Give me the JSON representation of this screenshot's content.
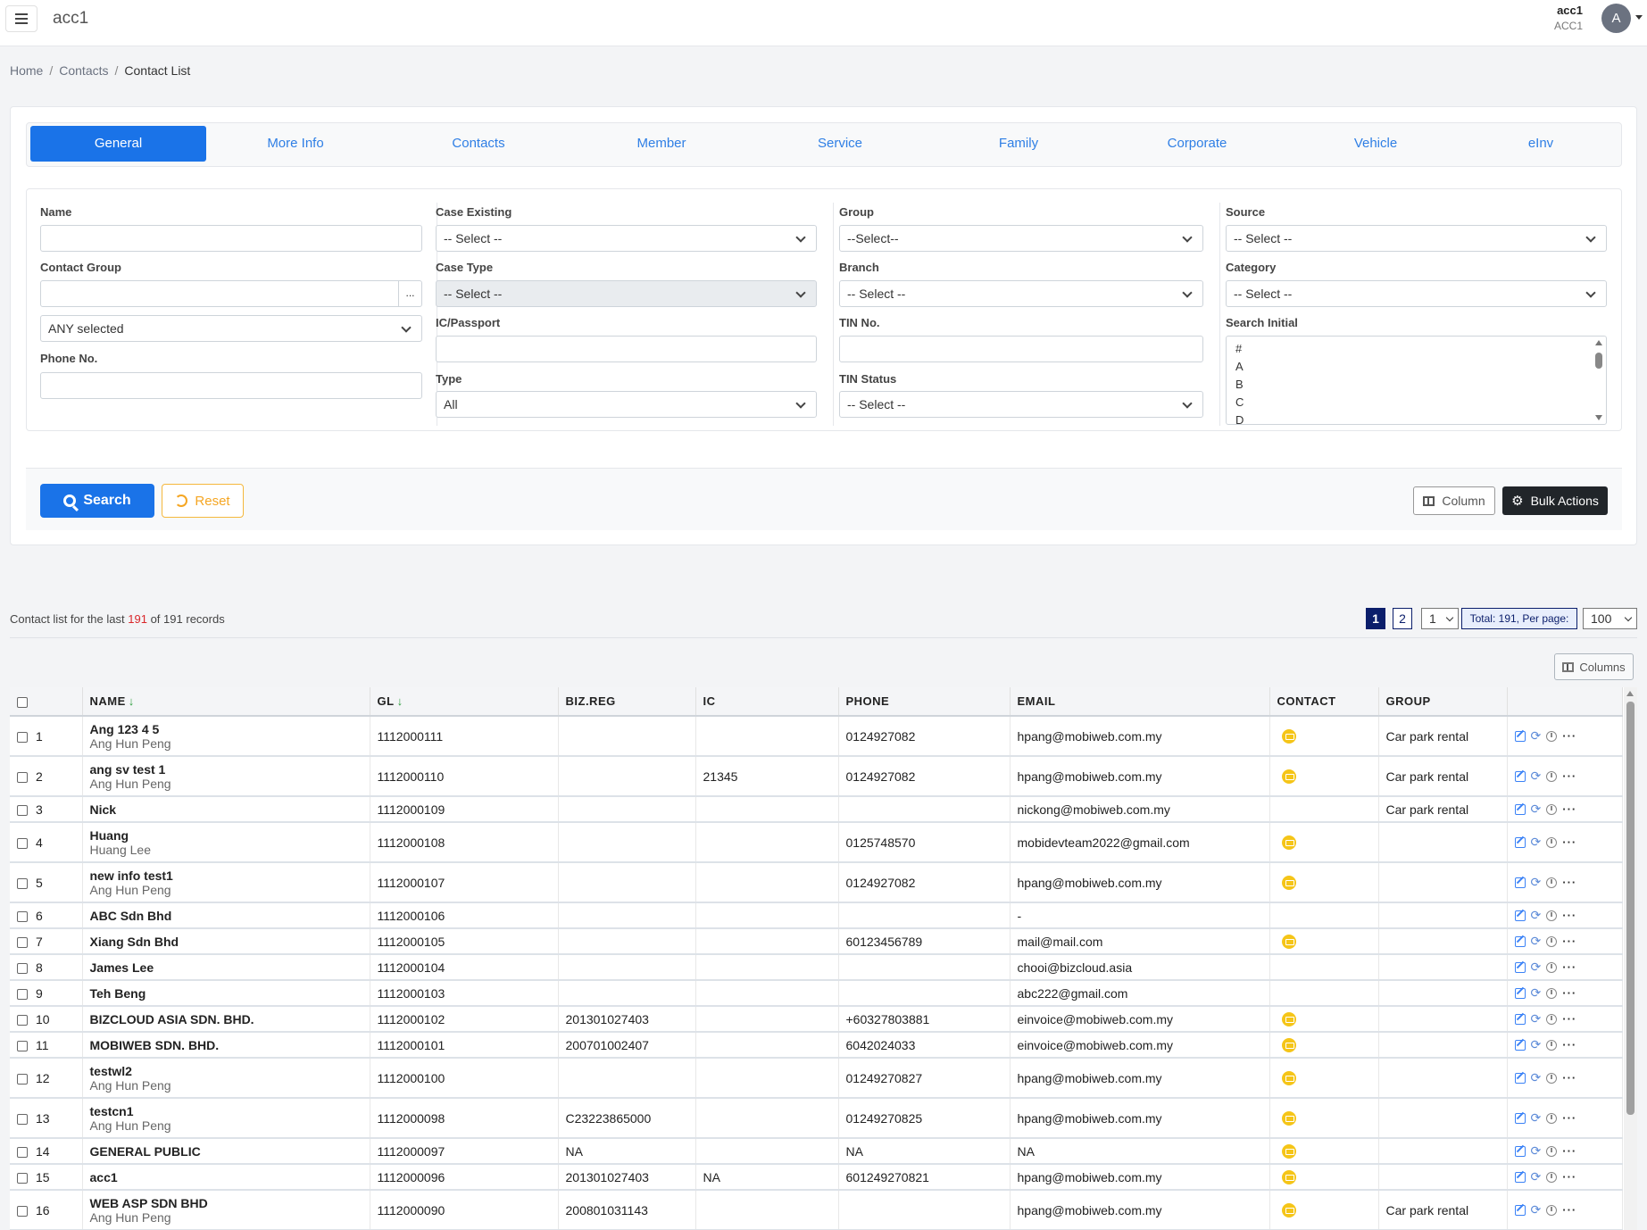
{
  "header": {
    "app_title": "acc1",
    "user_name": "acc1",
    "user_code": "ACC1",
    "avatar_letter": "A"
  },
  "breadcrumb": [
    "Home",
    "Contacts",
    "Contact List"
  ],
  "tabs": [
    "General",
    "More Info",
    "Contacts",
    "Member",
    "Service",
    "Family",
    "Corporate",
    "Vehicle",
    "eInv"
  ],
  "active_tab": "General",
  "form": {
    "name_label": "Name",
    "contact_group_label": "Contact Group",
    "contact_group_btn": "...",
    "any_selected": "ANY selected",
    "phone_label": "Phone No.",
    "case_existing_label": "Case Existing",
    "case_existing_value": "-- Select --",
    "case_type_label": "Case Type",
    "case_type_value": "-- Select --",
    "ic_label": "IC/Passport",
    "type_label": "Type",
    "type_value": "All",
    "group_label": "Group",
    "group_value": "--Select--",
    "branch_label": "Branch",
    "branch_value": "-- Select --",
    "tin_label": "TIN No.",
    "tin_status_label": "TIN Status",
    "tin_status_value": "-- Select --",
    "source_label": "Source",
    "source_value": "-- Select --",
    "category_label": "Category",
    "category_value": "-- Select --",
    "search_initial_label": "Search Initial",
    "search_initial_options": [
      "#",
      "A",
      "B",
      "C",
      "D"
    ]
  },
  "actions": {
    "search": "Search",
    "reset": "Reset",
    "column": "Column",
    "bulk": "Bulk Actions"
  },
  "summary": {
    "prefix": "Contact list for the last",
    "count": "191",
    "middle": "of",
    "total": "191",
    "suffix": "records"
  },
  "pagination": {
    "pages": [
      "1",
      "2"
    ],
    "current_page": "1",
    "page_select": "1",
    "total_text": "Total: 191, Per page:",
    "per_page": "100"
  },
  "table": {
    "columns_btn": "Columns",
    "headers": [
      "NAME",
      "GL",
      "BIZ.REG",
      "IC",
      "PHONE",
      "EMAIL",
      "CONTACT",
      "GROUP"
    ],
    "sort_arrow": "↓",
    "rows": [
      {
        "no": "1",
        "name": "Ang 123 4 5",
        "sub": "Ang Hun Peng",
        "gl": "1112000111",
        "biz": "",
        "ic": "",
        "phone": "0124927082",
        "email": "hpang@mobiweb.com.my",
        "contact": true,
        "group": "Car park rental"
      },
      {
        "no": "2",
        "name": "ang sv test 1",
        "sub": "Ang Hun Peng",
        "gl": "1112000110",
        "biz": "",
        "ic": "21345",
        "phone": "0124927082",
        "email": "hpang@mobiweb.com.my",
        "contact": true,
        "group": "Car park rental"
      },
      {
        "no": "3",
        "name": "Nick",
        "sub": "",
        "gl": "1112000109",
        "biz": "",
        "ic": "",
        "phone": "",
        "email": "nickong@mobiweb.com.my",
        "contact": false,
        "group": "Car park rental"
      },
      {
        "no": "4",
        "name": "Huang",
        "sub": "Huang Lee",
        "gl": "1112000108",
        "biz": "",
        "ic": "",
        "phone": "0125748570",
        "email": "mobidevteam2022@gmail.com",
        "contact": true,
        "group": ""
      },
      {
        "no": "5",
        "name": "new info test1",
        "sub": "Ang Hun Peng",
        "gl": "1112000107",
        "biz": "",
        "ic": "",
        "phone": "0124927082",
        "email": "hpang@mobiweb.com.my",
        "contact": true,
        "group": ""
      },
      {
        "no": "6",
        "name": "ABC Sdn Bhd",
        "sub": "",
        "gl": "1112000106",
        "biz": "",
        "ic": "",
        "phone": "",
        "email": "-",
        "contact": false,
        "group": ""
      },
      {
        "no": "7",
        "name": "Xiang Sdn Bhd",
        "sub": "",
        "gl": "1112000105",
        "biz": "",
        "ic": "",
        "phone": "60123456789",
        "email": "mail@mail.com",
        "contact": true,
        "group": ""
      },
      {
        "no": "8",
        "name": "James Lee",
        "sub": "",
        "gl": "1112000104",
        "biz": "",
        "ic": "",
        "phone": "",
        "email": "chooi@bizcloud.asia",
        "contact": false,
        "group": ""
      },
      {
        "no": "9",
        "name": "Teh Beng",
        "sub": "",
        "gl": "1112000103",
        "biz": "",
        "ic": "",
        "phone": "",
        "email": "abc222@gmail.com",
        "contact": false,
        "group": ""
      },
      {
        "no": "10",
        "name": "BIZCLOUD ASIA SDN. BHD.",
        "sub": "",
        "gl": "1112000102",
        "biz": "201301027403",
        "ic": "",
        "phone": "+60327803881",
        "email": "einvoice@mobiweb.com.my",
        "contact": true,
        "group": ""
      },
      {
        "no": "11",
        "name": "MOBIWEB SDN. BHD.",
        "sub": "",
        "gl": "1112000101",
        "biz": "200701002407",
        "ic": "",
        "phone": "6042024033",
        "email": "einvoice@mobiweb.com.my",
        "contact": true,
        "group": ""
      },
      {
        "no": "12",
        "name": "testwl2",
        "sub": "Ang Hun Peng",
        "gl": "1112000100",
        "biz": "",
        "ic": "",
        "phone": "01249270827",
        "email": "hpang@mobiweb.com.my",
        "contact": true,
        "group": ""
      },
      {
        "no": "13",
        "name": "testcn1",
        "sub": "Ang Hun Peng",
        "gl": "1112000098",
        "biz": "C23223865000",
        "ic": "",
        "phone": "01249270825",
        "email": "hpang@mobiweb.com.my",
        "contact": true,
        "group": ""
      },
      {
        "no": "14",
        "name": "GENERAL PUBLIC",
        "sub": "",
        "gl": "1112000097",
        "biz": "NA",
        "ic": "",
        "phone": "NA",
        "email": "NA",
        "contact": true,
        "group": ""
      },
      {
        "no": "15",
        "name": "acc1",
        "sub": "",
        "gl": "1112000096",
        "biz": "201301027403",
        "ic": "NA",
        "phone": "601249270821",
        "email": "hpang@mobiweb.com.my",
        "contact": true,
        "group": ""
      },
      {
        "no": "16",
        "name": "WEB ASP SDN BHD",
        "sub": "Ang Hun Peng",
        "gl": "1112000090",
        "biz": "200801031143",
        "ic": "",
        "phone": "",
        "email": "hpang@mobiweb.com.my",
        "contact": true,
        "group": "Car park rental"
      }
    ]
  },
  "colors": {
    "primary": "#1a73e8",
    "tab_text": "#2f7fe5",
    "reset": "#f5a623",
    "pager_dark": "#0b1e6b",
    "count_red": "#d9262a",
    "contact_icon": "#f5c518"
  },
  "icons": {
    "menu": "hamburger-icon",
    "search": "search-icon",
    "reset": "undo-icon",
    "column": "columns-icon",
    "bulk": "gear-icon",
    "contact": "mail-icon",
    "row_actions": [
      "edit-icon",
      "sync-icon",
      "history-icon",
      "more-icon"
    ]
  }
}
